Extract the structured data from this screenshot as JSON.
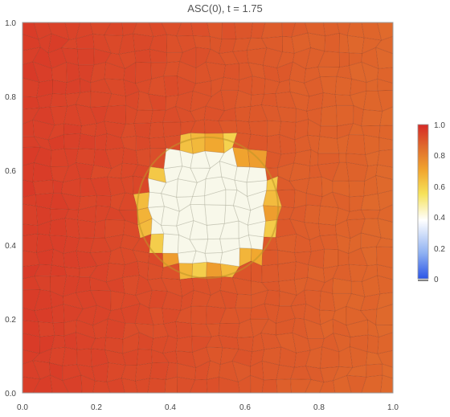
{
  "chart_data": {
    "type": "heatmap",
    "title": "ASC(0), t = 1.75",
    "xlabel": "",
    "ylabel": "",
    "xlim": [
      0.0,
      1.0
    ],
    "ylim": [
      0.0,
      1.0
    ],
    "x_ticks": [
      "0.0",
      "0.2",
      "0.4",
      "0.6",
      "0.8",
      "1.0"
    ],
    "y_ticks": [
      "0.0",
      "0.2",
      "0.4",
      "0.6",
      "0.8",
      "1.0"
    ],
    "colorbar": {
      "range": [
        0,
        1.0
      ],
      "ticks": [
        "0",
        "0.2",
        "0.4",
        "0.6",
        "0.8",
        "1.0"
      ],
      "colors": [
        "#2b55e6",
        "#8fb1f2",
        "#ffffff",
        "#f6e25a",
        "#f1a72f",
        "#e06d2c",
        "#d62a27"
      ]
    },
    "field": {
      "background_value_left": 0.96,
      "background_value_right": 0.86,
      "inclusion_center": [
        0.5,
        0.5
      ],
      "inclusion_radius": 0.19,
      "inclusion_value": 0.52,
      "rim_value": 0.66,
      "mesh": "polygonal"
    },
    "grid": false
  }
}
